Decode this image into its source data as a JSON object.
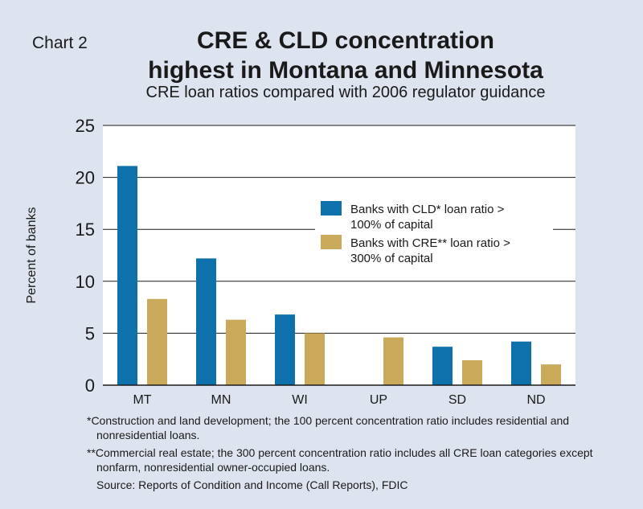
{
  "header": {
    "chart_label": "Chart 2",
    "title_line1": "CRE & CLD concentration",
    "title_line2": "highest in Montana and Minnesota",
    "subtitle": "CRE loan ratios compared with 2006 regulator guidance"
  },
  "colors": {
    "background": "#dde3ef",
    "plot_background": "#ffffff",
    "cld": "#0e71ab",
    "cre": "#c9aa5b",
    "grid": "#1a1a1a"
  },
  "chart_data": {
    "type": "bar",
    "categories": [
      "MT",
      "MN",
      "WI",
      "UP",
      "SD",
      "ND"
    ],
    "series": [
      {
        "name": "Banks with CLD* loan ratio > 100% of capital",
        "legend_line1": "Banks with CLD* loan ratio >",
        "legend_line2": "100% of capital",
        "values": [
          21.1,
          12.2,
          6.8,
          null,
          3.7,
          4.2
        ]
      },
      {
        "name": "Banks with CRE** loan ratio > 300% of capital",
        "legend_line1": "Banks with CRE** loan ratio >",
        "legend_line2": "300% of capital",
        "values": [
          8.3,
          6.3,
          5.0,
          4.6,
          2.4,
          2.0
        ]
      }
    ],
    "ylabel": "Percent of banks",
    "xlabel": "",
    "ylim": [
      0,
      25
    ],
    "yticks": [
      0,
      5,
      10,
      15,
      20,
      25
    ],
    "grid": true,
    "legend_position": "center-right"
  },
  "footnotes": {
    "note1": "*Construction and land development; the 100 percent concentration ratio includes residential and nonresidential loans.",
    "note2": "**Commercial real estate; the 300 percent concentration ratio includes all CRE loan categories except nonfarm, nonresidential owner-occupied loans.",
    "source": "Source: Reports of Condition and Income (Call Reports), FDIC"
  }
}
